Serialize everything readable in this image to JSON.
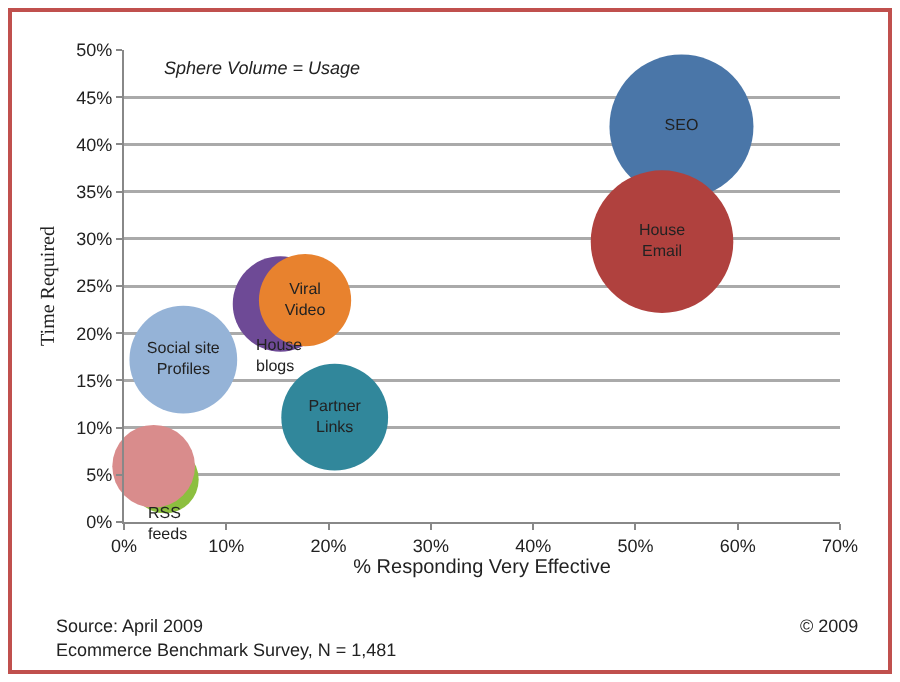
{
  "chart_data": {
    "type": "bubble",
    "xlabel": "% Responding Very Effective",
    "ylabel": "Time Required",
    "annotations": [
      "Sphere Volume = Usage",
      "Source: April 2009",
      "Ecommerce Benchmark Survey, N = 1,481",
      "© 2009"
    ],
    "series": [
      {
        "name": "SEO",
        "color": "#4a76a8",
        "x": [
          54.5
        ],
        "values": [
          41.9
        ],
        "sizes": [
          1
        ]
      },
      {
        "name": "House Email",
        "color": "#b0413e",
        "x": [
          52.6
        ],
        "values": [
          29.7
        ],
        "sizes": [
          0.98
        ]
      },
      {
        "name": "House blogs",
        "color": "#6e4a96",
        "x": [
          15.3
        ],
        "values": [
          23.1
        ],
        "sizes": [
          0.44
        ]
      },
      {
        "name": "Viral Video",
        "color": "#e8822e",
        "x": [
          17.7
        ],
        "values": [
          23.5
        ],
        "sizes": [
          0.41
        ]
      },
      {
        "name": "Social site Profiles",
        "color": "#95b3d7",
        "x": [
          5.8
        ],
        "values": [
          17.2
        ],
        "sizes": [
          0.56
        ]
      },
      {
        "name": "Partner Links",
        "color": "#31879b",
        "x": [
          20.6
        ],
        "values": [
          11.1
        ],
        "sizes": [
          0.55
        ]
      },
      {
        "name": "RSS feeds",
        "color": "#8cbf3f",
        "x": [
          4.0
        ],
        "values": [
          4.5
        ],
        "sizes": [
          0.22
        ]
      },
      {
        "color": "#d98c8c",
        "x": [
          2.9
        ],
        "values": [
          5.9
        ],
        "sizes": [
          0.33
        ]
      }
    ],
    "xlim": [
      0,
      70
    ],
    "xticks": [
      {
        "value": 0,
        "label": "0%"
      },
      {
        "value": 10,
        "label": "10%"
      },
      {
        "value": 20,
        "label": "20%"
      },
      {
        "value": 30,
        "label": "30%"
      },
      {
        "value": 40,
        "label": "40%"
      },
      {
        "value": 50,
        "label": "50%"
      },
      {
        "value": 60,
        "label": "60%"
      },
      {
        "value": 70,
        "label": "70%"
      }
    ],
    "ylim": [
      0,
      50
    ],
    "yticks": [
      {
        "value": 0,
        "label": "0%"
      },
      {
        "value": 5,
        "label": "5%"
      },
      {
        "value": 10,
        "label": "10%"
      },
      {
        "value": 15,
        "label": "15%"
      },
      {
        "value": 20,
        "label": "20%"
      },
      {
        "value": 25,
        "label": "25%"
      },
      {
        "value": 30,
        "label": "30%"
      },
      {
        "value": 35,
        "label": "35%"
      },
      {
        "value": 40,
        "label": "40%"
      },
      {
        "value": 45,
        "label": "45%"
      },
      {
        "value": 50,
        "label": "50%"
      }
    ],
    "grid": "y"
  }
}
